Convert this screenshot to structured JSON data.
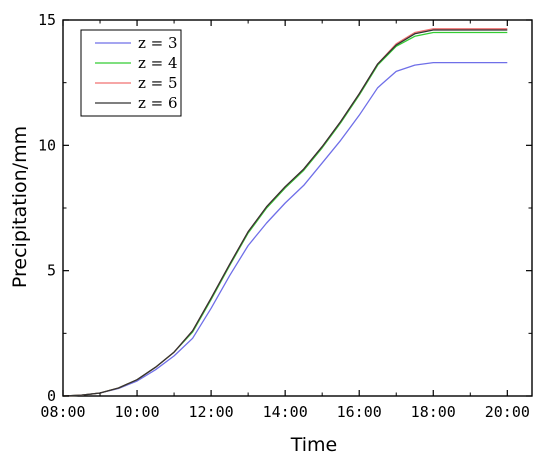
{
  "chart_data": {
    "type": "line",
    "title": "",
    "xlabel": "Time",
    "ylabel": "Precipitation/mm",
    "xlim": [
      "08:00",
      "20:40"
    ],
    "ylim": [
      0,
      15
    ],
    "x_ticks": [
      "08:00",
      "10:00",
      "12:00",
      "14:00",
      "16:00",
      "18:00",
      "20:00"
    ],
    "y_ticks": [
      0,
      5,
      10,
      15
    ],
    "grid": false,
    "legend_position": "top-left",
    "x": [
      "08:00",
      "08:30",
      "09:00",
      "09:30",
      "10:00",
      "10:30",
      "11:00",
      "11:30",
      "12:00",
      "12:30",
      "13:00",
      "13:30",
      "14:00",
      "14:30",
      "15:00",
      "15:30",
      "16:00",
      "16:30",
      "17:00",
      "17:30",
      "18:00",
      "18:30",
      "19:00",
      "19:30",
      "20:00"
    ],
    "series": [
      {
        "name": "z = 3",
        "color": "#6f6fe8",
        "values": [
          0.0,
          0.03,
          0.12,
          0.3,
          0.6,
          1.05,
          1.6,
          2.3,
          3.5,
          4.8,
          6.0,
          6.9,
          7.7,
          8.4,
          9.3,
          10.2,
          11.2,
          12.3,
          12.95,
          13.2,
          13.3,
          13.3,
          13.3,
          13.3,
          13.3
        ]
      },
      {
        "name": "z = 4",
        "color": "#33cc33",
        "values": [
          0.0,
          0.03,
          0.12,
          0.32,
          0.65,
          1.15,
          1.75,
          2.55,
          3.85,
          5.2,
          6.5,
          7.5,
          8.3,
          9.0,
          9.9,
          10.9,
          12.0,
          13.2,
          13.95,
          14.35,
          14.5,
          14.5,
          14.5,
          14.5,
          14.5
        ]
      },
      {
        "name": "z = 5",
        "color": "#f07070",
        "values": [
          0.0,
          0.03,
          0.12,
          0.32,
          0.65,
          1.15,
          1.75,
          2.6,
          3.9,
          5.25,
          6.55,
          7.55,
          8.35,
          9.05,
          9.95,
          10.95,
          12.05,
          13.25,
          14.05,
          14.5,
          14.65,
          14.65,
          14.65,
          14.65,
          14.65
        ]
      },
      {
        "name": "z = 6",
        "color": "#333333",
        "values": [
          0.0,
          0.03,
          0.12,
          0.32,
          0.65,
          1.15,
          1.75,
          2.6,
          3.9,
          5.25,
          6.55,
          7.55,
          8.35,
          9.05,
          9.95,
          10.95,
          12.05,
          13.25,
          14.0,
          14.45,
          14.6,
          14.6,
          14.6,
          14.6,
          14.6
        ]
      }
    ]
  }
}
